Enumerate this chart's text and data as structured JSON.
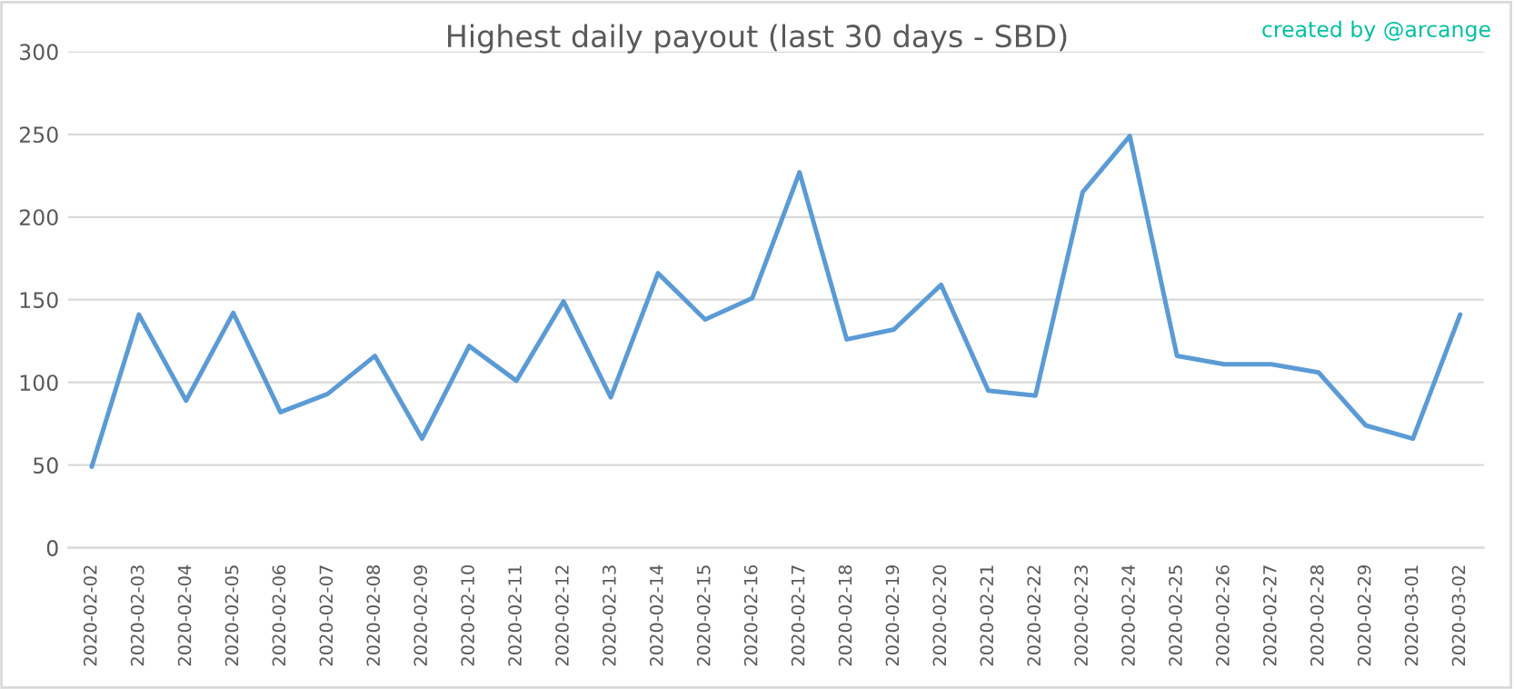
{
  "chart_data": {
    "type": "line",
    "title": "Highest daily payout (last 30 days - SBD)",
    "annotations": [
      "created by @arcange"
    ],
    "categories": [
      "2020-02-02",
      "2020-02-03",
      "2020-02-04",
      "2020-02-05",
      "2020-02-06",
      "2020-02-07",
      "2020-02-08",
      "2020-02-09",
      "2020-02-10",
      "2020-02-11",
      "2020-02-12",
      "2020-02-13",
      "2020-02-14",
      "2020-02-15",
      "2020-02-16",
      "2020-02-17",
      "2020-02-18",
      "2020-02-19",
      "2020-02-20",
      "2020-02-21",
      "2020-02-22",
      "2020-02-23",
      "2020-02-24",
      "2020-02-25",
      "2020-02-26",
      "2020-02-27",
      "2020-02-28",
      "2020-02-29",
      "2020-03-01",
      "2020-03-02"
    ],
    "series": [
      {
        "color": "#5b9bd5",
        "values": [
          49,
          141,
          89,
          142,
          82,
          93,
          116,
          66,
          122,
          101,
          149,
          91,
          166,
          138,
          151,
          227,
          126,
          132,
          159,
          95,
          92,
          215,
          249,
          116,
          111,
          111,
          106,
          74,
          66,
          141
        ]
      }
    ],
    "ylim": [
      0,
      300
    ],
    "yticks": [
      0,
      50,
      100,
      150,
      200,
      250,
      300
    ],
    "grid": "y",
    "marker": "none",
    "line_style": "solid",
    "legend": false
  }
}
